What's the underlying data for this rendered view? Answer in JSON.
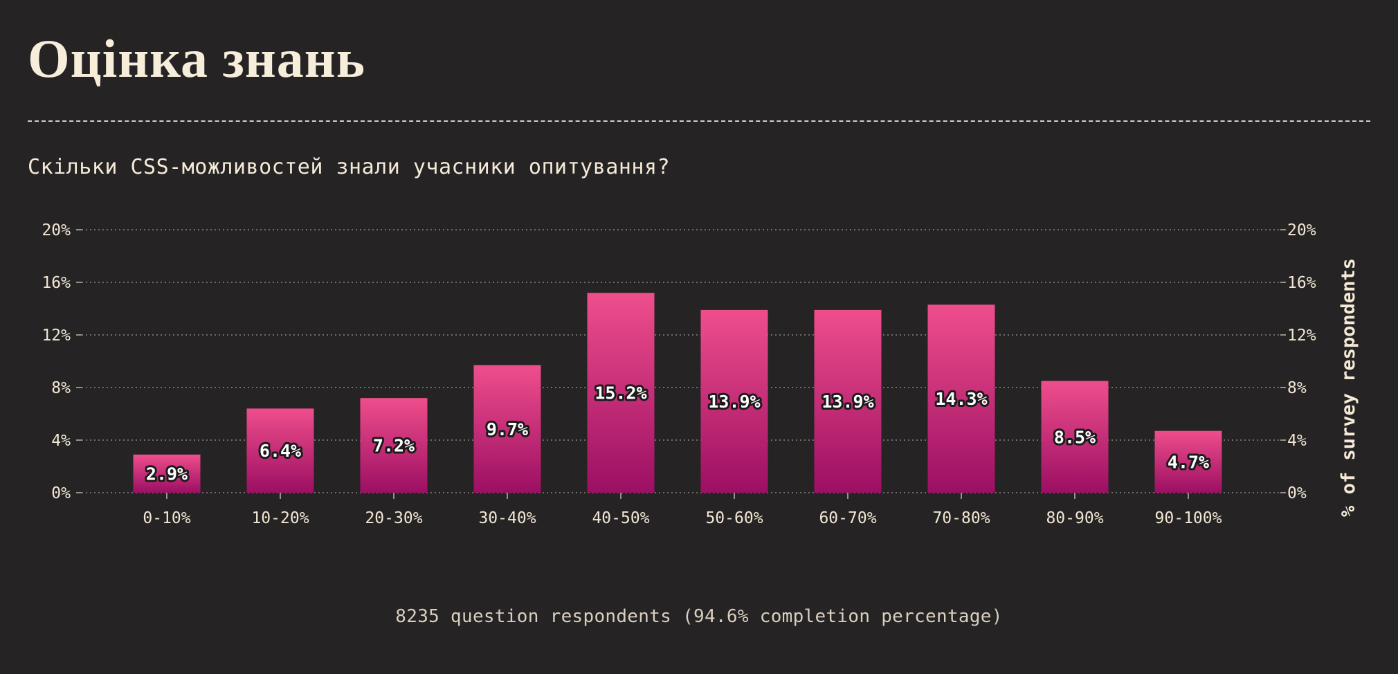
{
  "page": {
    "title": "Оцінка знань",
    "subtitle": "Скільки CSS-можливостей знали учасники опитування?",
    "footer": "8235 question respondents (94.6% completion percentage)"
  },
  "colors": {
    "background": "#262324",
    "bar_top": "#ef4e8c",
    "bar_bottom": "#9c0f63",
    "text": "#f4ead7"
  },
  "chart_data": {
    "type": "bar",
    "title": "",
    "xlabel": "",
    "ylabel": "% of survey respondents",
    "ylabel_position": "right",
    "categories": [
      "0-10%",
      "10-20%",
      "20-30%",
      "30-40%",
      "40-50%",
      "50-60%",
      "60-70%",
      "70-80%",
      "80-90%",
      "90-100%"
    ],
    "values": [
      2.9,
      6.4,
      7.2,
      9.7,
      15.2,
      13.9,
      13.9,
      14.3,
      8.5,
      4.7
    ],
    "data_labels": [
      "2.9%",
      "6.4%",
      "7.2%",
      "9.7%",
      "15.2%",
      "13.9%",
      "13.9%",
      "14.3%",
      "8.5%",
      "4.7%"
    ],
    "ylim": [
      0,
      20
    ],
    "yticks": [
      0,
      4,
      8,
      12,
      16,
      20
    ],
    "ytick_labels": [
      "0%",
      "4%",
      "8%",
      "12%",
      "16%",
      "20%"
    ],
    "grid": true,
    "legend": false
  }
}
